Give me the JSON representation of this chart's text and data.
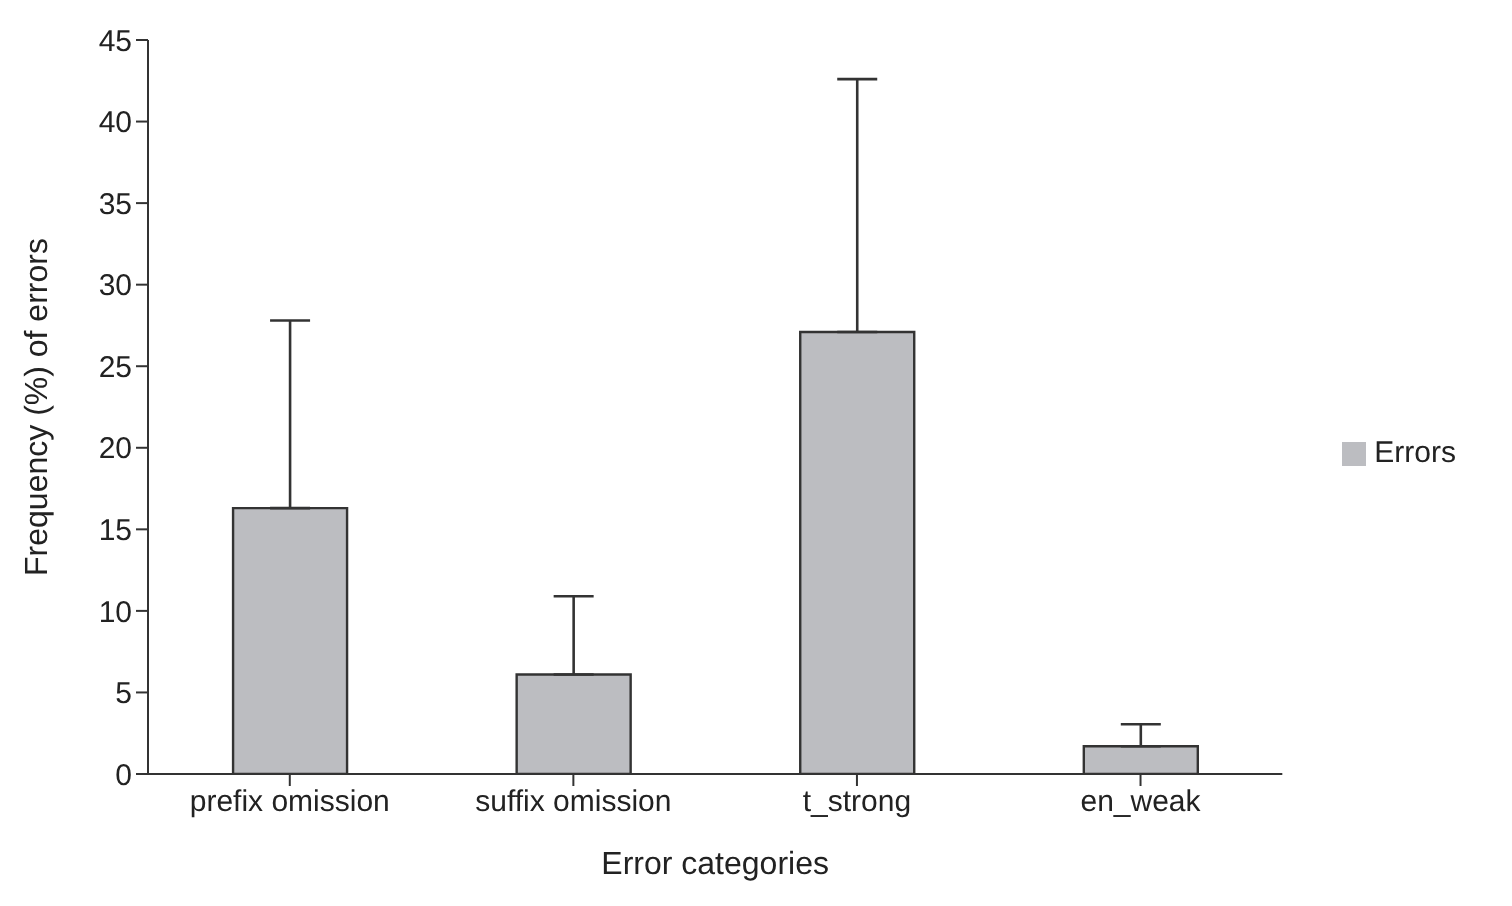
{
  "chart_data": {
    "type": "bar",
    "xlabel": "Error categories",
    "ylabel": "Frequency (%) of errors",
    "categories": [
      "prefix omission",
      "suffix omission",
      "t_strong",
      "en_weak"
    ],
    "series": [
      {
        "name": "Errors",
        "color": "#bcbdc1",
        "values": [
          16.3,
          6.1,
          27.1,
          1.7
        ],
        "errors": [
          [
            16.3,
            27.8
          ],
          [
            6.1,
            10.9
          ],
          [
            27.1,
            42.6
          ],
          [
            1.7,
            3.05
          ]
        ]
      }
    ],
    "ylim": [
      0,
      45
    ],
    "yticks": [
      0,
      5,
      10,
      15,
      20,
      25,
      30,
      35,
      40,
      45
    ],
    "grid": false,
    "legend": "right"
  }
}
